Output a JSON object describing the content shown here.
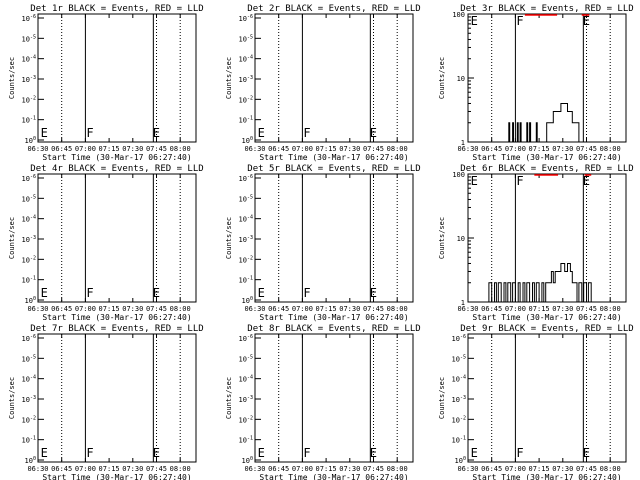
{
  "colors": {
    "events": "#000000",
    "lld": "#ff0000",
    "background": "#ffffff"
  },
  "x_ticks": [
    "06:30",
    "06:45",
    "07:00",
    "07:15",
    "07:30",
    "07:45",
    "08:00"
  ],
  "xlabel": "Start Time (30-Mar-17 06:27:40)",
  "ylabel": "Counts/sec",
  "linear_yticks": [
    "10^0",
    "10^-1",
    "10^-2",
    "10^-3",
    "10^-4",
    "10^-5",
    "10^-6"
  ],
  "log_yticks": [
    "1",
    "10",
    "100"
  ],
  "markers": [
    {
      "letter": "E",
      "time": "06:31"
    },
    {
      "letter": "F",
      "time": "07:00"
    },
    {
      "letter": "E",
      "time": "07:42"
    }
  ],
  "chart_data": [
    {
      "type": "line",
      "title": "Det 1r BLACK = Events, RED = LLD",
      "yscale": "linear",
      "has_data": false
    },
    {
      "type": "line",
      "title": "Det 2r BLACK = Events, RED = LLD",
      "yscale": "linear",
      "has_data": false
    },
    {
      "type": "line",
      "title": "Det 3r BLACK = Events, RED = LLD",
      "yscale": "log",
      "ylim": [
        1,
        100
      ],
      "has_data": true,
      "events": [
        [
          6.92,
          1
        ],
        [
          6.93,
          2
        ],
        [
          6.94,
          1
        ],
        [
          6.97,
          2
        ],
        [
          6.98,
          1
        ],
        [
          7.02,
          2
        ],
        [
          7.03,
          1
        ],
        [
          7.05,
          2
        ],
        [
          7.06,
          1
        ],
        [
          7.1,
          1
        ],
        [
          7.12,
          2
        ],
        [
          7.13,
          1
        ],
        [
          7.15,
          2
        ],
        [
          7.16,
          1
        ],
        [
          7.2,
          1
        ],
        [
          7.22,
          2
        ],
        [
          7.23,
          1
        ],
        [
          7.3,
          1
        ],
        [
          7.33,
          2
        ],
        [
          7.36,
          2
        ],
        [
          7.4,
          3
        ],
        [
          7.43,
          3
        ],
        [
          7.45,
          3
        ],
        [
          7.48,
          4
        ],
        [
          7.52,
          4
        ],
        [
          7.55,
          3
        ],
        [
          7.58,
          3
        ],
        [
          7.6,
          2
        ],
        [
          7.65,
          2
        ],
        [
          7.67,
          1
        ]
      ],
      "lld_level": 100,
      "lld_spans": [
        [
          7.1,
          7.44
        ],
        [
          7.7,
          7.78
        ]
      ]
    },
    {
      "type": "line",
      "title": "Det 4r BLACK = Events, RED = LLD",
      "yscale": "linear",
      "has_data": false
    },
    {
      "type": "line",
      "title": "Det 5r BLACK = Events, RED = LLD",
      "yscale": "linear",
      "has_data": false
    },
    {
      "type": "line",
      "title": "Det 6r BLACK = Events, RED = LLD",
      "yscale": "log",
      "ylim": [
        1,
        100
      ],
      "has_data": true,
      "events": [
        [
          6.7,
          1
        ],
        [
          6.72,
          2
        ],
        [
          6.75,
          1
        ],
        [
          6.78,
          2
        ],
        [
          6.8,
          1
        ],
        [
          6.82,
          2
        ],
        [
          6.85,
          1
        ],
        [
          6.88,
          2
        ],
        [
          6.9,
          1
        ],
        [
          6.92,
          2
        ],
        [
          6.95,
          1
        ],
        [
          6.97,
          2
        ],
        [
          7.0,
          1
        ],
        [
          7.03,
          2
        ],
        [
          7.05,
          1
        ],
        [
          7.08,
          2
        ],
        [
          7.1,
          1
        ],
        [
          7.12,
          2
        ],
        [
          7.15,
          1
        ],
        [
          7.18,
          2
        ],
        [
          7.2,
          1
        ],
        [
          7.22,
          2
        ],
        [
          7.25,
          1
        ],
        [
          7.28,
          2
        ],
        [
          7.3,
          1
        ],
        [
          7.32,
          2
        ],
        [
          7.35,
          2
        ],
        [
          7.38,
          3
        ],
        [
          7.4,
          2
        ],
        [
          7.42,
          3
        ],
        [
          7.45,
          3
        ],
        [
          7.48,
          4
        ],
        [
          7.5,
          4
        ],
        [
          7.52,
          3
        ],
        [
          7.55,
          4
        ],
        [
          7.58,
          3
        ],
        [
          7.6,
          2
        ],
        [
          7.62,
          2
        ],
        [
          7.65,
          1
        ],
        [
          7.67,
          2
        ],
        [
          7.7,
          1
        ],
        [
          7.72,
          2
        ],
        [
          7.75,
          1
        ],
        [
          7.77,
          2
        ],
        [
          7.8,
          1
        ]
      ],
      "lld_level": 100,
      "lld_spans": [
        [
          7.2,
          7.45
        ],
        [
          7.73,
          7.8
        ]
      ]
    },
    {
      "type": "line",
      "title": "Det 7r BLACK = Events, RED = LLD",
      "yscale": "linear",
      "has_data": false
    },
    {
      "type": "line",
      "title": "Det 8r BLACK = Events, RED = LLD",
      "yscale": "linear",
      "has_data": false
    },
    {
      "type": "line",
      "title": "Det 9r BLACK = Events, RED = LLD",
      "yscale": "linear",
      "has_data": false
    }
  ]
}
